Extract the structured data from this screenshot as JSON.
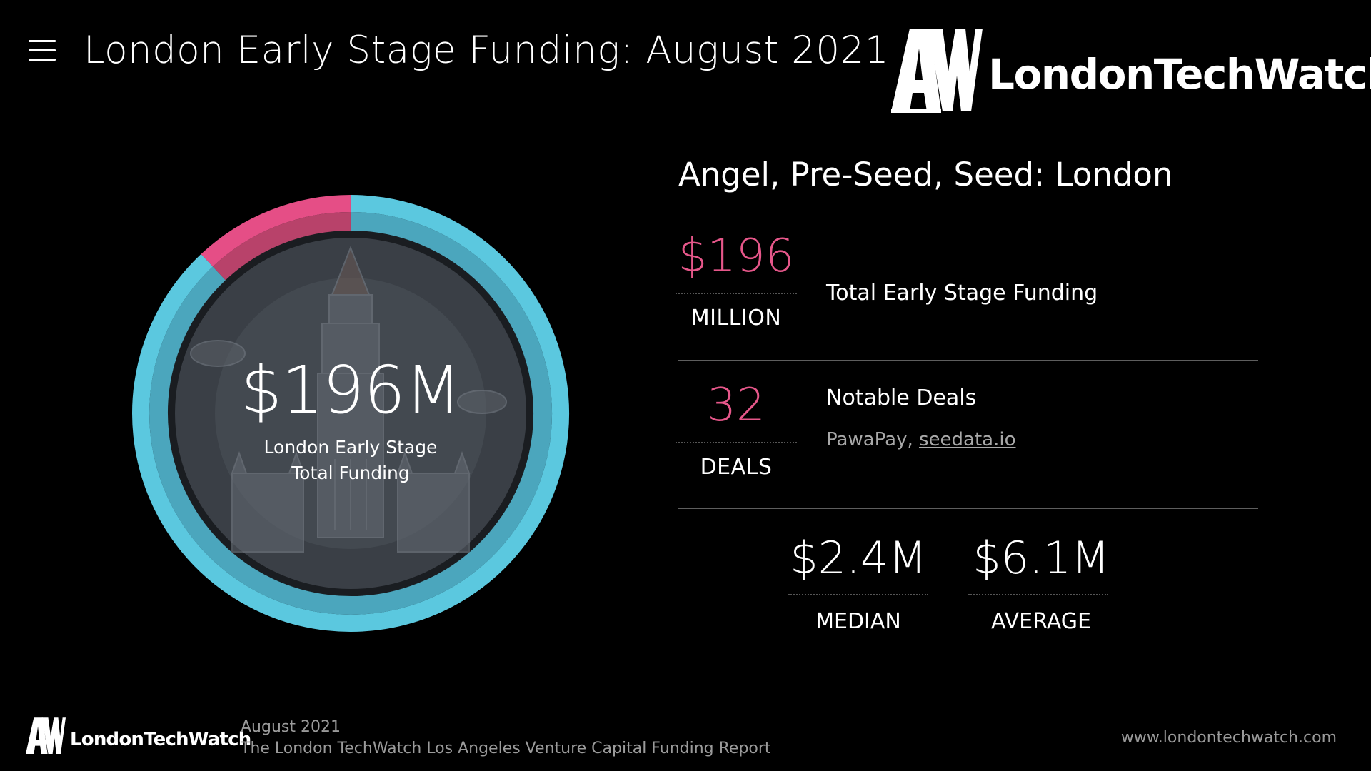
{
  "header": {
    "title": "London Early Stage Funding: August 2021",
    "menu_icon": "hamburger-menu-icon",
    "brand_mark": "AW",
    "brand_name": "LondonTechWatch"
  },
  "donut": {
    "value_text": "$196M",
    "caption_line1": "London Early Stage",
    "caption_line2": "Total Funding",
    "highlight_fraction": 0.12,
    "colors": {
      "ring": "#5bc8df",
      "inner_ring": "#4ba6bd",
      "highlight": "#e54e86",
      "inner_highlight": "#b8426a",
      "disc": "#3a3f46"
    },
    "background_art": "big-ben-illustration"
  },
  "stats": {
    "heading": "Angel, Pre-Seed, Seed: London",
    "total": {
      "value": "$196",
      "unit": "MILLION",
      "label": "Total Early Stage Funding"
    },
    "deals": {
      "value": "32",
      "unit": "DEALS",
      "label": "Notable Deals",
      "notable_prefix": "PawaPay, ",
      "notable_link": "seedata.io"
    },
    "median": {
      "value": "$2.4M",
      "label": "MEDIAN"
    },
    "average": {
      "value": "$6.1M",
      "label": "AVERAGE"
    },
    "accent_color": "#e6578a"
  },
  "footer": {
    "brand_mark": "AW",
    "brand_name": "LondonTechWatch",
    "date": "August 2021",
    "report_title": "The London TechWatch Los Angeles Venture Capital Funding Report",
    "url": "www.londontechwatch.com"
  }
}
